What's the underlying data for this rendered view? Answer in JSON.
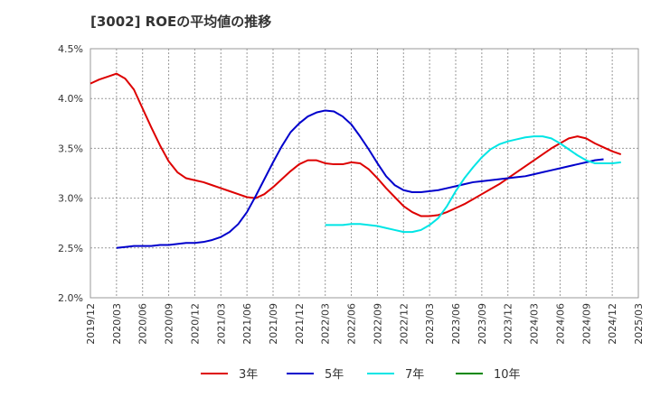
{
  "chart_data": {
    "type": "line",
    "title": "[3002]  ROEの平均値の推移",
    "ylim": [
      2.0,
      4.5
    ],
    "y_ticks": [
      "2.0%",
      "2.5%",
      "3.0%",
      "3.5%",
      "4.0%",
      "4.5%"
    ],
    "y_tick_values": [
      2.0,
      2.5,
      3.0,
      3.5,
      4.0,
      4.5
    ],
    "x_ticks": [
      "2019/12",
      "2020/03",
      "2020/06",
      "2020/09",
      "2020/12",
      "2021/03",
      "2021/06",
      "2021/09",
      "2021/12",
      "2022/03",
      "2022/06",
      "2022/09",
      "2022/12",
      "2023/03",
      "2023/06",
      "2023/09",
      "2023/12",
      "2024/03",
      "2024/06",
      "2024/09",
      "2024/12",
      "2025/03"
    ],
    "grid": true,
    "legend_position": "bottom",
    "series": [
      {
        "name": "3年",
        "color": "#dd0000",
        "start_month": 0,
        "values": [
          4.15,
          4.19,
          4.22,
          4.25,
          4.2,
          4.09,
          3.9,
          3.71,
          3.53,
          3.37,
          3.26,
          3.2,
          3.18,
          3.16,
          3.13,
          3.1,
          3.07,
          3.04,
          3.01,
          3.0,
          3.04,
          3.11,
          3.19,
          3.27,
          3.34,
          3.38,
          3.38,
          3.35,
          3.34,
          3.34,
          3.36,
          3.35,
          3.29,
          3.2,
          3.1,
          3.01,
          2.92,
          2.86,
          2.82,
          2.82,
          2.83,
          2.86,
          2.9,
          2.94,
          2.99,
          3.04,
          3.09,
          3.14,
          3.2,
          3.26,
          3.32,
          3.38,
          3.44,
          3.5,
          3.55,
          3.6,
          3.62,
          3.6,
          3.55,
          3.51,
          3.47,
          3.44
        ]
      },
      {
        "name": "5年",
        "color": "#0000cc",
        "start_month": 3,
        "values": [
          2.5,
          2.51,
          2.52,
          2.52,
          2.52,
          2.53,
          2.53,
          2.54,
          2.55,
          2.55,
          2.56,
          2.58,
          2.61,
          2.66,
          2.74,
          2.86,
          3.02,
          3.19,
          3.36,
          3.52,
          3.66,
          3.75,
          3.82,
          3.86,
          3.88,
          3.87,
          3.82,
          3.74,
          3.62,
          3.49,
          3.35,
          3.22,
          3.13,
          3.08,
          3.06,
          3.06,
          3.07,
          3.08,
          3.1,
          3.12,
          3.14,
          3.16,
          3.17,
          3.18,
          3.19,
          3.2,
          3.21,
          3.22,
          3.24,
          3.26,
          3.28,
          3.3,
          3.32,
          3.34,
          3.36,
          3.38,
          3.39
        ]
      },
      {
        "name": "7年",
        "color": "#00e5e5",
        "start_month": 27,
        "values": [
          2.73,
          2.73,
          2.73,
          2.74,
          2.74,
          2.73,
          2.72,
          2.7,
          2.68,
          2.66,
          2.66,
          2.68,
          2.73,
          2.8,
          2.92,
          3.07,
          3.2,
          3.31,
          3.41,
          3.49,
          3.54,
          3.57,
          3.59,
          3.61,
          3.62,
          3.62,
          3.6,
          3.55,
          3.49,
          3.43,
          3.38,
          3.35,
          3.35,
          3.35,
          3.36
        ]
      },
      {
        "name": "10年",
        "color": "#008800",
        "start_month": 0,
        "values": []
      }
    ]
  }
}
